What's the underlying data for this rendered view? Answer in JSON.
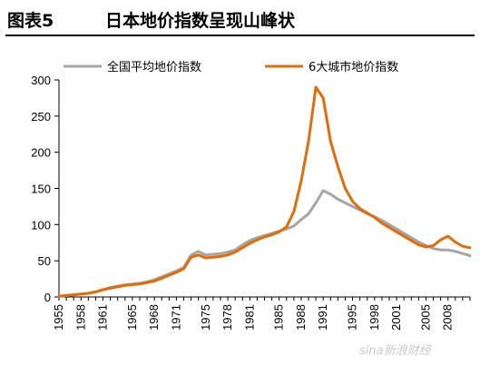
{
  "header": {
    "figure_label": "图表5",
    "title": "日本地价指数呈现山峰状"
  },
  "colors": {
    "series_national": "#a6a6a6",
    "series_six_cities": "#e36c09",
    "axis": "#000000"
  },
  "watermark": "sina新浪财经",
  "chart_data": {
    "type": "line",
    "title": "日本地价指数呈现山峰状",
    "xlabel": "",
    "ylabel": "",
    "xlim": [
      1955,
      2011
    ],
    "ylim": [
      0,
      300
    ],
    "yticks": [
      0,
      50,
      100,
      150,
      200,
      250,
      300
    ],
    "xticks": [
      "1955",
      "1958",
      "1961",
      "1965",
      "1968",
      "1971",
      "1975",
      "1978",
      "1981",
      "1985",
      "1988",
      "1991",
      "1995",
      "1998",
      "2001",
      "2005",
      "2008"
    ],
    "grid": false,
    "legend": "top",
    "series": [
      {
        "name": "全国平均地价指数",
        "x": [
          1955,
          1956,
          1957,
          1958,
          1959,
          1960,
          1961,
          1962,
          1963,
          1964,
          1965,
          1966,
          1967,
          1968,
          1969,
          1970,
          1971,
          1972,
          1973,
          1974,
          1975,
          1976,
          1977,
          1978,
          1979,
          1980,
          1981,
          1982,
          1983,
          1984,
          1985,
          1986,
          1987,
          1988,
          1989,
          1990,
          1991,
          1992,
          1993,
          1994,
          1995,
          1996,
          1997,
          1998,
          1999,
          2000,
          2001,
          2002,
          2003,
          2004,
          2005,
          2006,
          2007,
          2008,
          2009,
          2010,
          2011
        ],
        "y": [
          1,
          2,
          3,
          4,
          5,
          7,
          10,
          13,
          15,
          17,
          18,
          19,
          21,
          24,
          28,
          32,
          36,
          41,
          58,
          63,
          58,
          59,
          60,
          62,
          65,
          72,
          78,
          82,
          85,
          88,
          91,
          94,
          98,
          107,
          115,
          130,
          147,
          142,
          135,
          130,
          125,
          120,
          115,
          111,
          106,
          100,
          94,
          88,
          82,
          76,
          71,
          67,
          65,
          65,
          63,
          60,
          57
        ]
      },
      {
        "name": "6大城市地价指数",
        "x": [
          1955,
          1956,
          1957,
          1958,
          1959,
          1960,
          1961,
          1962,
          1963,
          1964,
          1965,
          1966,
          1967,
          1968,
          1969,
          1970,
          1971,
          1972,
          1973,
          1974,
          1975,
          1976,
          1977,
          1978,
          1979,
          1980,
          1981,
          1982,
          1983,
          1984,
          1985,
          1986,
          1987,
          1988,
          1989,
          1990,
          1991,
          1992,
          1993,
          1994,
          1995,
          1996,
          1997,
          1998,
          1999,
          2000,
          2001,
          2002,
          2003,
          2004,
          2005,
          2006,
          2007,
          2008,
          2009,
          2010,
          2011
        ],
        "y": [
          1,
          2,
          3,
          4,
          5,
          7,
          10,
          12,
          14,
          16,
          17,
          18,
          20,
          22,
          26,
          30,
          34,
          39,
          55,
          58,
          54,
          55,
          56,
          58,
          62,
          68,
          74,
          79,
          83,
          86,
          90,
          97,
          118,
          160,
          215,
          290,
          275,
          215,
          180,
          150,
          132,
          122,
          116,
          110,
          102,
          96,
          90,
          84,
          78,
          72,
          69,
          71,
          79,
          84,
          76,
          70,
          68
        ]
      }
    ]
  }
}
